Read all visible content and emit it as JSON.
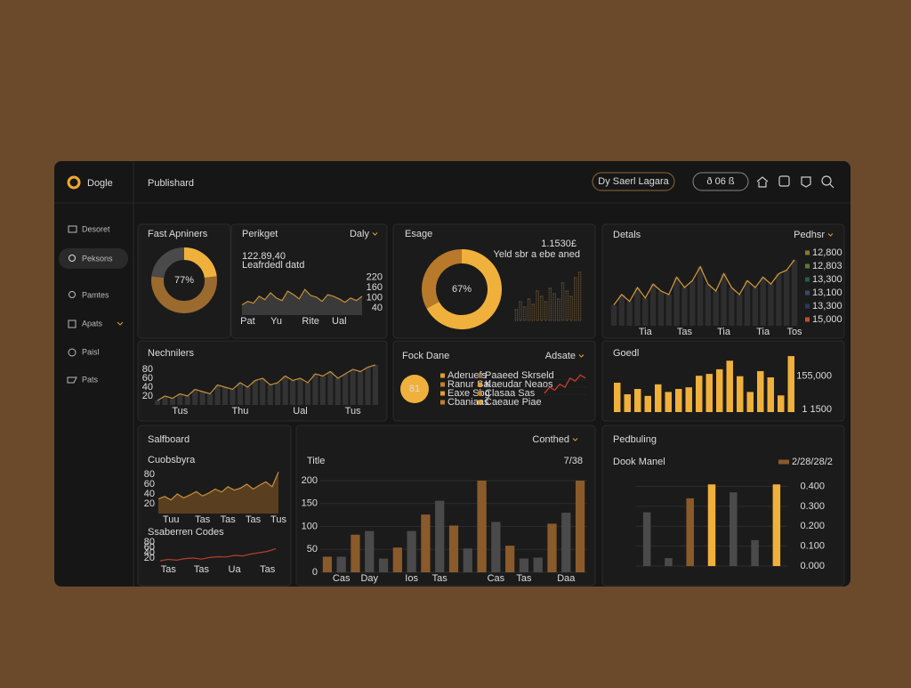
{
  "app": {
    "logo": "Dogle",
    "page_title": "Publishard",
    "search": "Dy Saerl Lagara",
    "toggle": "ð 06 ß",
    "nav": [
      "Desoret",
      "Peksons",
      "Pamtes",
      "Apats",
      "Paisl",
      "Pats"
    ]
  },
  "chart_data": [
    {
      "type": "donut",
      "title": "Fast Apniners",
      "values": [
        23,
        54,
        23
      ],
      "colors": [
        "#f0b03c",
        "#9b6a2e",
        "#4a4a4a"
      ],
      "center_label": "77%"
    },
    {
      "type": "area",
      "title": "Perikget",
      "dropdown": "Daly",
      "headline": "122.89,40",
      "subtitle": "Leafrdedl datd",
      "categories": [
        null,
        "Pat",
        null,
        null,
        null,
        null,
        "Yu",
        null,
        null,
        null,
        null,
        null,
        "Rite",
        null,
        null,
        null,
        null,
        "Ual",
        null,
        null,
        null,
        null
      ],
      "values": [
        60,
        80,
        70,
        110,
        90,
        130,
        100,
        85,
        140,
        120,
        95,
        150,
        115,
        105,
        80,
        120,
        110,
        95,
        75,
        100,
        85,
        110
      ],
      "ylim": [
        0,
        250
      ],
      "yticks": [
        40,
        100,
        160,
        220
      ],
      "fill": "#3a3a3a",
      "color": "#c8913a"
    },
    {
      "type": "donut",
      "title": "Esage",
      "values": [
        67,
        33
      ],
      "colors": [
        "#f0b03c",
        "#b8792a"
      ],
      "center_label": "67%",
      "headline": "1.1530£",
      "subtitle": "Yeld sbr a ebe aned",
      "mini_values": [
        20,
        35,
        25,
        40,
        30,
        55,
        45,
        35,
        60,
        50,
        40,
        70,
        55,
        45,
        80,
        90
      ],
      "mini_ylim": [
        0,
        100
      ],
      "mini_color": "#8a6a3a"
    },
    {
      "type": "area",
      "bars": true,
      "title": "Detals",
      "dropdown": "Pedhsr",
      "categories": [
        null,
        null,
        null,
        null,
        "Tia",
        null,
        null,
        null,
        null,
        "Tas",
        null,
        null,
        null,
        null,
        "Tia",
        null,
        null,
        null,
        null,
        "Tia",
        null,
        null,
        null,
        "Tos"
      ],
      "values": [
        30,
        45,
        35,
        55,
        40,
        60,
        50,
        45,
        70,
        55,
        65,
        85,
        60,
        50,
        75,
        55,
        45,
        65,
        55,
        70,
        60,
        75,
        80,
        95
      ],
      "ylim": [
        0,
        100
      ],
      "fill": "#2e2e2e",
      "color": "#d89a3a",
      "legend": [
        {
          "name": "12,800",
          "color": "#8a7a2a"
        },
        {
          "name": "12,803",
          "color": "#5a7a3a"
        },
        {
          "name": "13,300",
          "color": "#2a5a4a"
        },
        {
          "name": "13,100",
          "color": "#3a4a6a"
        },
        {
          "name": "13,300",
          "color": "#2a3a5a"
        },
        {
          "name": "15,000",
          "color": "#c0502a"
        }
      ]
    },
    {
      "type": "area",
      "bars": true,
      "title": "Nechnilers",
      "categories": [
        null,
        null,
        null,
        "Tus",
        null,
        null,
        null,
        null,
        null,
        null,
        null,
        "Thu",
        null,
        null,
        null,
        null,
        null,
        null,
        null,
        "Ual",
        null,
        null,
        null,
        null,
        null,
        null,
        "Tus",
        null,
        null,
        null
      ],
      "values": [
        10,
        20,
        15,
        25,
        20,
        35,
        30,
        25,
        45,
        40,
        35,
        50,
        40,
        55,
        60,
        45,
        50,
        65,
        55,
        60,
        50,
        70,
        65,
        75,
        60,
        70,
        80,
        75,
        85,
        90
      ],
      "ylim": [
        0,
        100
      ],
      "yticks": [
        20,
        40,
        60,
        80
      ],
      "fill": "#333333",
      "color": "#c8913a"
    },
    {
      "type": "line",
      "title": "Fock Dane",
      "dropdown": "Adsate",
      "center_value": 81,
      "legend": [
        {
          "name": "Aderuefs",
          "color": "#e0a030"
        },
        {
          "name": "Ranur Sal",
          "color": "#c0822a"
        },
        {
          "name": "Eaxe Sbg",
          "color": "#e0a030"
        },
        {
          "name": "Cbaniaas",
          "color": "#c0822a"
        },
        {
          "name": "Paaeed Skrseld",
          "color": "#8a7050"
        },
        {
          "name": "Kaeudar Neaos",
          "color": "#e0a030"
        },
        {
          "name": "Clasaa Sas",
          "color": "#c0822a"
        },
        {
          "name": "Caeaue Piae",
          "color": "#e0a030"
        }
      ],
      "values": [
        3,
        5,
        4,
        6,
        5,
        8,
        7,
        9,
        8
      ],
      "ylim": [
        0,
        10
      ],
      "color": "#d0402a",
      "grid": true
    },
    {
      "type": "bar",
      "title": "Goedl",
      "values": [
        127000,
        77000,
        100000,
        70000,
        120000,
        87000,
        100000,
        107000,
        157000,
        165000,
        185000,
        222000,
        155000,
        87000,
        177000,
        150000,
        72000,
        242000
      ],
      "color": "#f0b03c",
      "ylim": [
        0,
        250000
      ],
      "yticks": [
        {
          "value": 11500,
          "label": "1 1500"
        },
        {
          "value": 155000,
          "label": "155,000"
        }
      ]
    },
    {
      "type": "area",
      "title": "Salfboard",
      "subtitle": "Cuobsbyra",
      "categories": [
        null,
        null,
        "Tuu",
        null,
        null,
        null,
        null,
        "Tas",
        null,
        null,
        null,
        "Tas",
        null,
        null,
        null,
        "Tas",
        null,
        null,
        null,
        "Tus"
      ],
      "values": [
        30,
        35,
        28,
        40,
        32,
        38,
        45,
        36,
        42,
        50,
        44,
        55,
        48,
        52,
        60,
        50,
        58,
        65,
        55,
        85
      ],
      "ylim": [
        0,
        100
      ],
      "yticks": [
        20,
        40,
        60,
        80
      ],
      "fill": "#5a3e20",
      "color": "#c8913a"
    },
    {
      "type": "line",
      "title": "Ssaberren Codes",
      "categories": [
        null,
        "Tas",
        null,
        null,
        null,
        "Tas",
        null,
        null,
        null,
        "Ua",
        null,
        null,
        null,
        "Tas",
        null
      ],
      "values": [
        10,
        15,
        12,
        18,
        20,
        16,
        22,
        25,
        24,
        30,
        28,
        35,
        40,
        45,
        55
      ],
      "ylim": [
        0,
        100
      ],
      "yticks": [
        20,
        40,
        60,
        80
      ],
      "color": "#b0402a"
    },
    {
      "type": "bar",
      "title": "Title",
      "dropdown": "Conthed",
      "page_label": "7/38",
      "categories": [
        null,
        "Cas",
        null,
        "Day",
        null,
        null,
        "Ios",
        null,
        "Tas",
        null,
        null,
        null,
        "Cas",
        null,
        "Tas",
        null,
        null,
        "Daa",
        null
      ],
      "values": [
        34,
        34,
        82,
        90,
        30,
        54,
        90,
        126,
        156,
        102,
        52,
        200,
        110,
        58,
        30,
        32,
        106,
        130,
        200
      ],
      "colors": [
        "#8a5a2b",
        "#4a4a4a",
        "#8a5a2b",
        "#4a4a4a",
        "#4a4a4a",
        "#8a5a2b",
        "#4a4a4a",
        "#8a5a2b",
        "#4a4a4a",
        "#8a5a2b",
        "#4a4a4a",
        "#8a5a2b",
        "#4a4a4a",
        "#8a5a2b",
        "#4a4a4a",
        "#4a4a4a",
        "#8a5a2b",
        "#4a4a4a",
        "#8a5a2b"
      ],
      "ylim": [
        0,
        200
      ],
      "yticks": [
        0,
        50,
        100,
        150,
        200
      ],
      "grid": true
    },
    {
      "type": "bar",
      "title": "Pedbuling",
      "subtitle": "Dook Manel",
      "legend": [
        {
          "name": "2/28/28/2",
          "color": "#8a5a2b"
        }
      ],
      "values": [
        0.27,
        0.04,
        0.34,
        0.41,
        0.37,
        0.13,
        0.41
      ],
      "colors": [
        "#4a4a4a",
        "#4a4a4a",
        "#8a5a2b",
        "#f0b03c",
        "#4a4a4a",
        "#4a4a4a",
        "#f0b03c"
      ],
      "ylim": [
        0,
        0.42
      ],
      "yticks": [
        {
          "value": 0,
          "label": "0.000"
        },
        {
          "value": 0.1,
          "label": "0.100"
        },
        {
          "value": 0.2,
          "label": "0.200"
        },
        {
          "value": 0.3,
          "label": "0.300"
        },
        {
          "value": 0.4,
          "label": "0.400"
        }
      ],
      "grid": true
    }
  ]
}
